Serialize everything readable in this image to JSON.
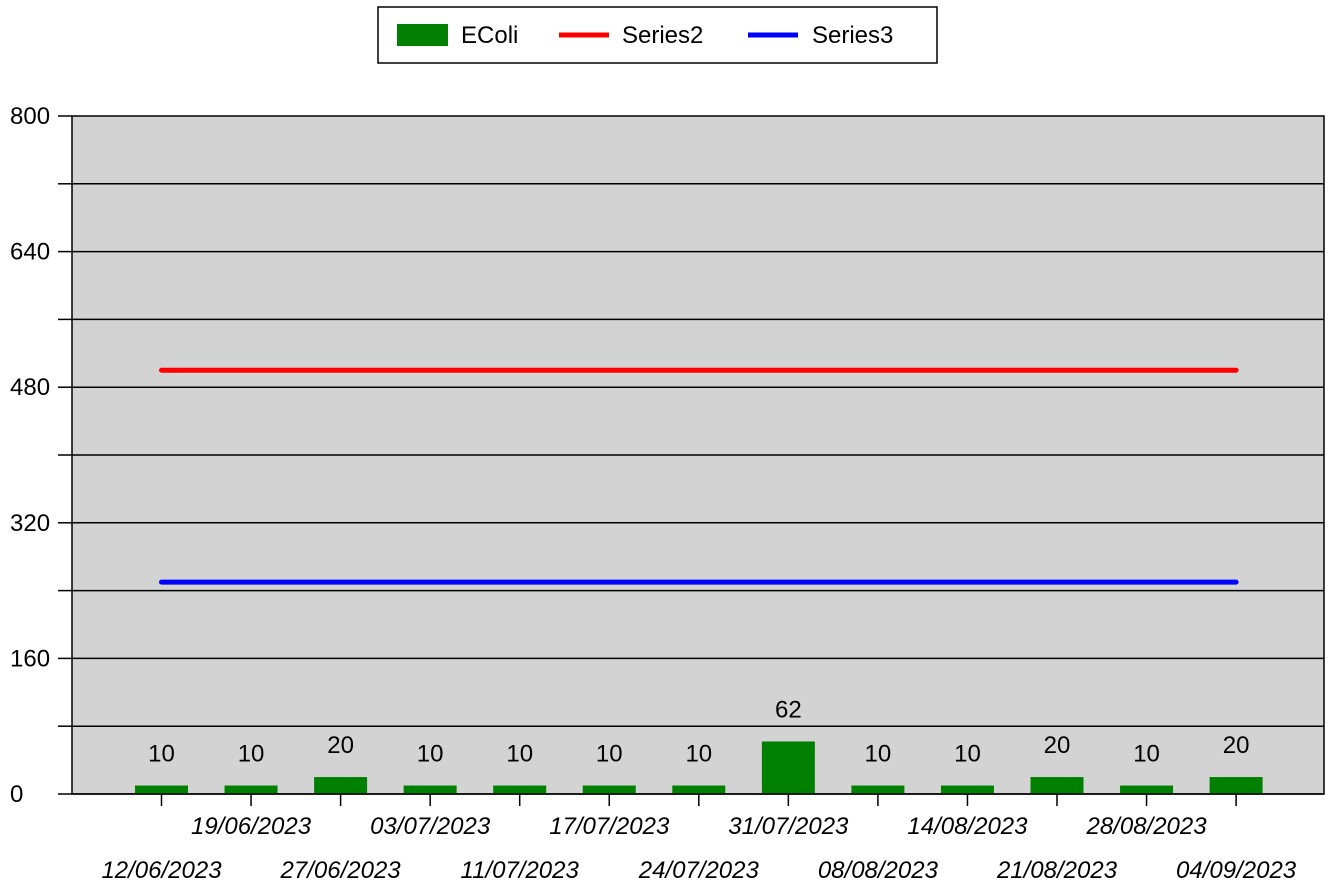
{
  "chart_data": {
    "type": "bar",
    "title": "",
    "xlabel": "",
    "ylabel": "",
    "ylim": [
      0,
      800
    ],
    "yticks": [
      0,
      160,
      320,
      480,
      640,
      800
    ],
    "grid": true,
    "legend_position": "top-center",
    "categories": [
      "12/06/2023",
      "19/06/2023",
      "27/06/2023",
      "03/07/2023",
      "11/07/2023",
      "17/07/2023",
      "24/07/2023",
      "31/07/2023",
      "08/08/2023",
      "14/08/2023",
      "21/08/2023",
      "28/08/2023",
      "04/09/2023"
    ],
    "series": [
      {
        "name": "EColi",
        "kind": "bar",
        "color": "#008000",
        "values": [
          10,
          10,
          20,
          10,
          10,
          10,
          10,
          62,
          10,
          10,
          20,
          10,
          20
        ],
        "labels": [
          "10",
          "10",
          "20",
          "10",
          "10",
          "10",
          "10",
          "62",
          "10",
          "10",
          "20",
          "10",
          "20"
        ]
      },
      {
        "name": "Series2",
        "kind": "line",
        "color": "#ff0000",
        "values": [
          500,
          500,
          500,
          500,
          500,
          500,
          500,
          500,
          500,
          500,
          500,
          500,
          500
        ]
      },
      {
        "name": "Series3",
        "kind": "line",
        "color": "#0000ff",
        "values": [
          250,
          250,
          250,
          250,
          250,
          250,
          250,
          250,
          250,
          250,
          250,
          250,
          250
        ]
      }
    ],
    "plot_background": "#d3d3d3"
  }
}
